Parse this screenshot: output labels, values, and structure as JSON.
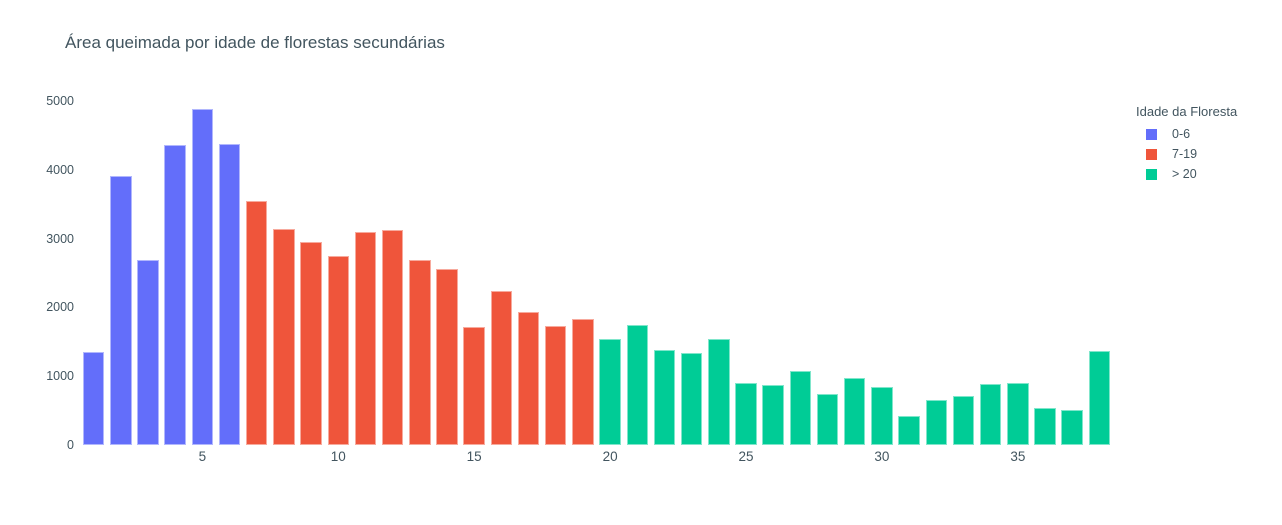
{
  "title": "Área queimada por idade de florestas secundárias",
  "legend": {
    "title": "Idade da Floresta",
    "entries": [
      "0-6",
      "7-19",
      "> 20"
    ]
  },
  "colors": {
    "blue": "#636EFA",
    "red": "#EF553B",
    "green": "#00CC96",
    "text": "#42555f",
    "background": "#ffffff"
  },
  "chart_data": {
    "type": "bar",
    "title": "Área queimada por idade de florestas secundárias",
    "xlabel": "",
    "ylabel": "",
    "legend_title": "Idade da Floresta",
    "legend_position": "right",
    "grid": false,
    "ylim": [
      0,
      5200
    ],
    "xlim": [
      0.5,
      38.5
    ],
    "yticks": [
      0,
      1000,
      2000,
      3000,
      4000,
      5000
    ],
    "xticks": [
      5,
      10,
      15,
      20,
      25,
      30,
      35
    ],
    "x": [
      1,
      2,
      3,
      4,
      5,
      6,
      7,
      8,
      9,
      10,
      11,
      12,
      13,
      14,
      15,
      16,
      17,
      18,
      19,
      20,
      21,
      22,
      23,
      24,
      25,
      26,
      27,
      28,
      29,
      30,
      31,
      32,
      33,
      34,
      35,
      36,
      37,
      38
    ],
    "series": [
      {
        "name": "0-6",
        "color": "#636EFA",
        "x": [
          1,
          2,
          3,
          4,
          5,
          6
        ],
        "values": [
          1350,
          3920,
          2690,
          4370,
          4900,
          4390
        ]
      },
      {
        "name": "7-19",
        "color": "#EF553B",
        "x": [
          7,
          8,
          9,
          10,
          11,
          12,
          13,
          14,
          15,
          16,
          17,
          18,
          19
        ],
        "values": [
          3550,
          3150,
          2950,
          2750,
          3100,
          3130,
          2690,
          2560,
          1720,
          2240,
          1940,
          1740,
          1830
        ]
      },
      {
        "name": "> 20",
        "color": "#00CC96",
        "x": [
          20,
          21,
          22,
          23,
          24,
          25,
          26,
          27,
          28,
          29,
          30,
          31,
          32,
          33,
          34,
          35,
          36,
          37,
          38
        ],
        "values": [
          1540,
          1750,
          1390,
          1340,
          1550,
          900,
          870,
          1080,
          740,
          970,
          840,
          420,
          660,
          710,
          890,
          900,
          540,
          510,
          1370
        ]
      }
    ]
  }
}
